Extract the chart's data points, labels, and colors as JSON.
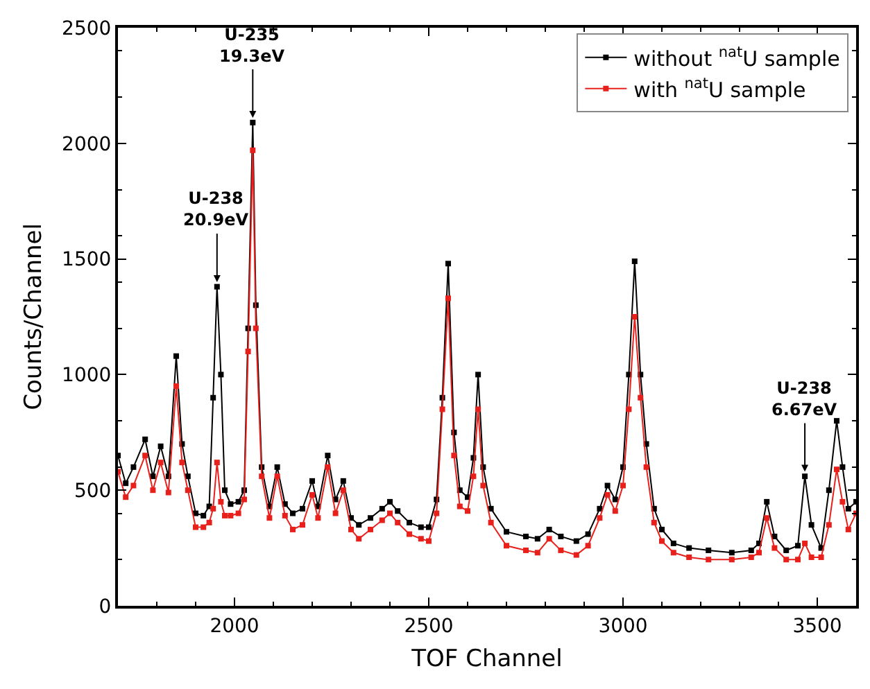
{
  "chart_data": {
    "type": "line",
    "xlabel": "TOF Channel",
    "ylabel": "Counts/Channel",
    "x": [
      1700,
      1720,
      1740,
      1770,
      1790,
      1810,
      1830,
      1850,
      1865,
      1880,
      1900,
      1920,
      1935,
      1945,
      1955,
      1965,
      1975,
      1990,
      2010,
      2025,
      2035,
      2047,
      2055,
      2070,
      2090,
      2110,
      2130,
      2150,
      2175,
      2200,
      2215,
      2240,
      2260,
      2280,
      2300,
      2320,
      2350,
      2380,
      2400,
      2420,
      2450,
      2480,
      2500,
      2520,
      2535,
      2550,
      2565,
      2580,
      2600,
      2615,
      2627,
      2640,
      2660,
      2700,
      2750,
      2780,
      2810,
      2840,
      2880,
      2910,
      2940,
      2960,
      2980,
      3000,
      3015,
      3030,
      3045,
      3060,
      3080,
      3100,
      3130,
      3170,
      3220,
      3280,
      3330,
      3350,
      3370,
      3390,
      3420,
      3450,
      3468,
      3485,
      3510,
      3530,
      3550,
      3565,
      3580,
      3600
    ],
    "legend": "top right",
    "marker": "square",
    "xlim": [
      1700,
      3600
    ],
    "xticks": [
      2000,
      2500,
      3000,
      3500
    ],
    "ylim": [
      0,
      2500
    ],
    "yticks": [
      0,
      500,
      1000,
      1500,
      2000,
      2500
    ],
    "series": [
      {
        "name": "without $^{nat}$U sample",
        "color": "#000000",
        "values": [
          650,
          530,
          600,
          720,
          560,
          690,
          560,
          1080,
          700,
          560,
          400,
          390,
          430,
          900,
          1380,
          1000,
          500,
          440,
          450,
          500,
          1200,
          2090,
          1300,
          600,
          430,
          600,
          440,
          400,
          420,
          540,
          430,
          650,
          460,
          540,
          380,
          350,
          380,
          420,
          450,
          410,
          360,
          340,
          340,
          460,
          900,
          1480,
          750,
          500,
          470,
          640,
          1000,
          600,
          420,
          320,
          300,
          290,
          330,
          300,
          280,
          310,
          420,
          520,
          460,
          600,
          1000,
          1490,
          1000,
          700,
          420,
          330,
          270,
          250,
          240,
          230,
          240,
          270,
          450,
          300,
          240,
          260,
          560,
          350,
          250,
          500,
          800,
          600,
          420,
          450
        ]
      },
      {
        "name": "with $^{nat}$U sample",
        "color": "#e8201c",
        "values": [
          580,
          470,
          520,
          650,
          500,
          620,
          490,
          950,
          620,
          500,
          340,
          340,
          360,
          420,
          620,
          450,
          390,
          390,
          400,
          460,
          1100,
          1970,
          1200,
          560,
          380,
          560,
          390,
          330,
          350,
          480,
          380,
          600,
          400,
          500,
          330,
          290,
          330,
          370,
          400,
          360,
          310,
          290,
          280,
          400,
          850,
          1330,
          650,
          430,
          410,
          560,
          850,
          520,
          360,
          260,
          240,
          230,
          290,
          240,
          220,
          260,
          380,
          480,
          410,
          520,
          850,
          1250,
          900,
          600,
          360,
          280,
          230,
          210,
          200,
          200,
          210,
          230,
          380,
          250,
          200,
          200,
          270,
          210,
          210,
          350,
          590,
          450,
          330,
          400
        ]
      }
    ],
    "annotations": [
      {
        "text": "U-238\n20.9eV",
        "x": 1955,
        "y": 1400
      },
      {
        "text": "U-235\n19.3eV",
        "x": 2047,
        "y": 2110
      },
      {
        "text": "U-238\n6.67eV",
        "x": 3468,
        "y": 580
      }
    ]
  }
}
